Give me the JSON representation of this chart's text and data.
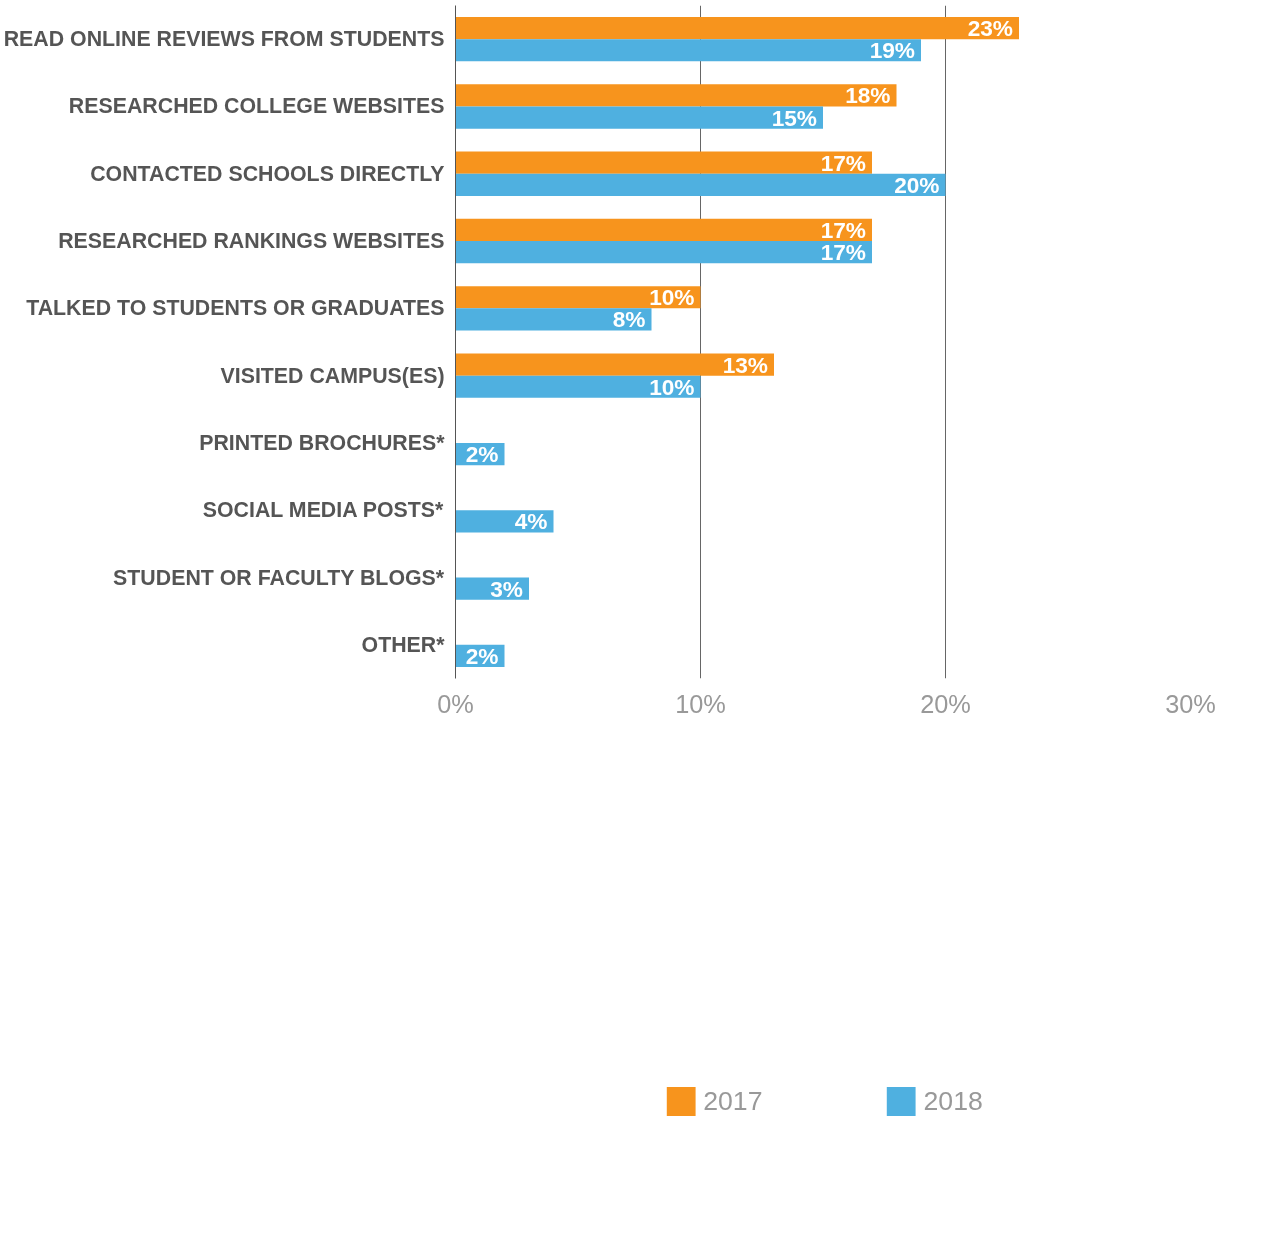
{
  "chart_data": {
    "type": "bar",
    "orientation": "horizontal",
    "categories": [
      "READ ONLINE REVIEWS FROM STUDENTS",
      "RESEARCHED COLLEGE WEBSITES",
      "CONTACTED SCHOOLS DIRECTLY",
      "RESEARCHED RANKINGS WEBSITES",
      "TALKED TO STUDENTS OR GRADUATES",
      "VISITED CAMPUS(ES)",
      "PRINTED BROCHURES*",
      "SOCIAL MEDIA POSTS*",
      "STUDENT OR FACULTY BLOGS*",
      "OTHER*"
    ],
    "series": [
      {
        "name": "2017",
        "color": "#f7941d",
        "values": [
          23,
          18,
          17,
          17,
          10,
          13,
          null,
          null,
          null,
          null
        ]
      },
      {
        "name": "2018",
        "color": "#4fb0e0",
        "values": [
          19,
          15,
          20,
          17,
          8,
          10,
          2,
          4,
          3,
          2
        ]
      }
    ],
    "xlim": [
      0,
      30
    ],
    "xticks": [
      {
        "value": 0,
        "label": "0%"
      },
      {
        "value": 10,
        "label": "10%"
      },
      {
        "value": 20,
        "label": "20%"
      },
      {
        "value": 30,
        "label": "30%"
      }
    ],
    "value_labels": [
      [
        "23%",
        "18%",
        "17%",
        "17%",
        "10%",
        "13%",
        null,
        null,
        null,
        null
      ],
      [
        "19%",
        "15%",
        "20%",
        "17%",
        "8%",
        "10%",
        "2%",
        "4%",
        "3%",
        "2%"
      ]
    ],
    "grid": "x",
    "legend": "bottom"
  }
}
